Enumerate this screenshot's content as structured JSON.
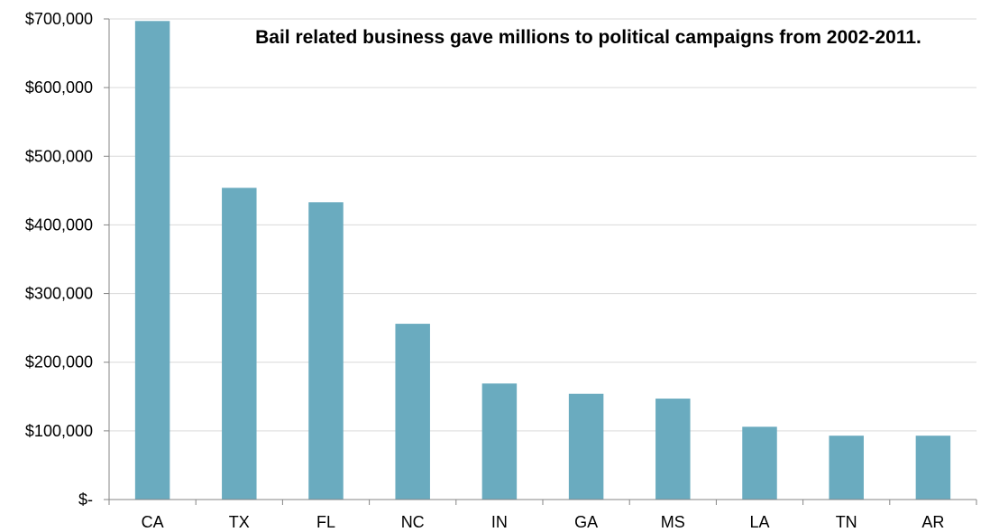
{
  "chart_data": {
    "type": "bar",
    "title": "Bail related business gave millions to political campaigns from 2002-2011.",
    "xlabel": "",
    "ylabel": "",
    "categories": [
      "CA",
      "TX",
      "FL",
      "NC",
      "IN",
      "GA",
      "MS",
      "LA",
      "TN",
      "AR"
    ],
    "values": [
      697000,
      454000,
      433000,
      256000,
      169000,
      154000,
      147000,
      106000,
      93000,
      93000
    ],
    "ylim": [
      0,
      700000
    ],
    "yticks": [
      0,
      100000,
      200000,
      300000,
      400000,
      500000,
      600000,
      700000
    ],
    "ytick_labels": [
      "$-",
      "$100,000",
      "$200,000",
      "$300,000",
      "$400,000",
      "$500,000",
      "$600,000",
      "$700,000"
    ],
    "grid": true,
    "legend": "none",
    "bar_color": "#6aabbf",
    "grid_color": "#d9d9d9",
    "axis_color": "#868686"
  }
}
